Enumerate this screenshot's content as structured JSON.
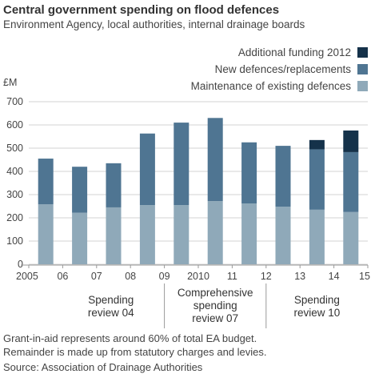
{
  "title": "Central government spending on flood defences",
  "subtitle": "Environment Agency, local authorities, internal drainage boards",
  "notes": {
    "line1": "Grant-in-aid represents around 60% of total EA budget.",
    "line2": "Remainder is made up from statutory charges and levies.",
    "source": "Source: Association of Drainage Authorities"
  },
  "chart_data": {
    "type": "bar",
    "stacked": true,
    "title": "Central government spending on flood defences",
    "subtitle": "Environment Agency, local authorities, internal drainage boards",
    "ylabel": "£M",
    "ylim": [
      0,
      700
    ],
    "yticks": [
      0,
      100,
      200,
      300,
      400,
      500,
      600,
      700
    ],
    "grid": true,
    "legend_position": "top-right",
    "x_tick_labels": [
      "2005",
      "06",
      "07",
      "08",
      "09",
      "2010",
      "11",
      "12",
      "13",
      "14",
      "15"
    ],
    "categories": [
      "2005-06",
      "2006-07",
      "2007-08",
      "2008-09",
      "2009-10",
      "2010-11",
      "2011-12",
      "2012-13",
      "2013-14",
      "2014-15"
    ],
    "series": [
      {
        "name": "Maintenance of existing defences",
        "color": "#8fa9b9",
        "values": [
          258,
          222,
          245,
          255,
          255,
          272,
          262,
          248,
          235,
          225
        ]
      },
      {
        "name": "New defences/replacements",
        "color": "#4f7592",
        "values": [
          197,
          198,
          190,
          308,
          355,
          358,
          263,
          262,
          260,
          258
        ]
      },
      {
        "name": "Additional funding 2012",
        "color": "#15324a",
        "values": [
          0,
          0,
          0,
          0,
          0,
          0,
          0,
          0,
          40,
          93
        ]
      }
    ],
    "legend_order": [
      "Additional funding 2012",
      "New defences/replacements",
      "Maintenance of existing defences"
    ],
    "annotations": [
      {
        "label_lines": [
          "Spending",
          "review 04"
        ]
      },
      {
        "label_lines": [
          "Comprehensive",
          "spending",
          "review 07"
        ]
      },
      {
        "label_lines": [
          "Spending",
          "review 10"
        ]
      }
    ]
  }
}
